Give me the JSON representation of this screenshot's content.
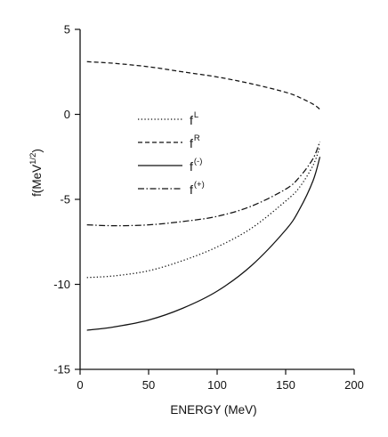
{
  "chart_data": {
    "type": "line",
    "title": "",
    "xlabel": "ENERGY (MeV)",
    "ylabel": {
      "base": "f(MeV",
      "sup": "1/2",
      "close": ")"
    },
    "xlim": [
      0,
      200
    ],
    "ylim": [
      -15,
      5
    ],
    "xticks": [
      0,
      50,
      100,
      150,
      200
    ],
    "yticks": [
      5,
      0,
      -5,
      -10,
      -15
    ],
    "grid": false,
    "legend_position": "upper-left inside",
    "series": [
      {
        "name": "f",
        "sup": "L",
        "style": "dotted",
        "x": [
          5,
          25,
          50,
          75,
          100,
          125,
          150,
          160,
          170,
          175
        ],
        "y": [
          -9.6,
          -9.5,
          -9.2,
          -8.6,
          -7.8,
          -6.7,
          -5.1,
          -4.3,
          -3.0,
          -1.9
        ]
      },
      {
        "name": "f",
        "sup": "R",
        "style": "dashed",
        "x": [
          5,
          25,
          50,
          75,
          100,
          125,
          150,
          160,
          170,
          175
        ],
        "y": [
          3.1,
          3.0,
          2.8,
          2.5,
          2.2,
          1.8,
          1.3,
          1.0,
          0.6,
          0.3
        ]
      },
      {
        "name": "f",
        "sup": "(-)",
        "style": "solid",
        "x": [
          5,
          25,
          50,
          75,
          100,
          125,
          150,
          160,
          170,
          175
        ],
        "y": [
          -12.7,
          -12.5,
          -12.1,
          -11.4,
          -10.4,
          -8.9,
          -6.8,
          -5.6,
          -3.9,
          -2.5
        ]
      },
      {
        "name": "f",
        "sup": "(+)",
        "style": "dashdot",
        "x": [
          5,
          25,
          50,
          75,
          100,
          125,
          150,
          160,
          170,
          175
        ],
        "y": [
          -6.5,
          -6.55,
          -6.5,
          -6.3,
          -6.0,
          -5.4,
          -4.4,
          -3.7,
          -2.6,
          -1.6
        ]
      }
    ]
  }
}
